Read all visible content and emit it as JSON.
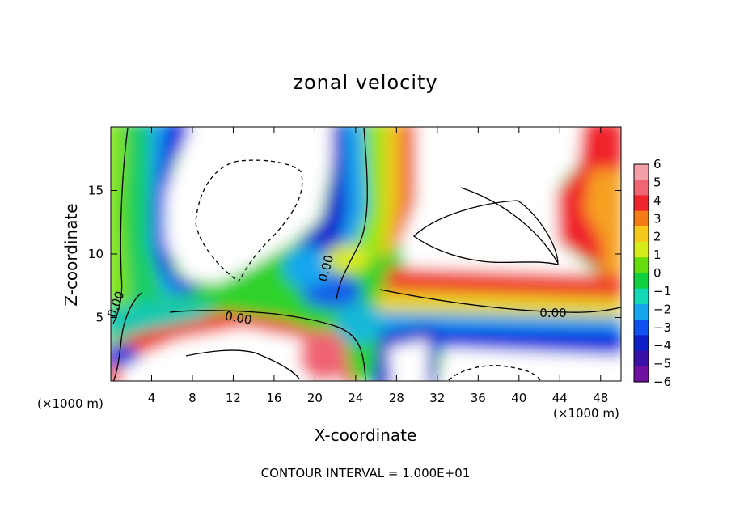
{
  "chart_data": {
    "type": "heatmap",
    "title": "zonal velocity",
    "xlabel": "X-coordinate",
    "ylabel": "Z-coordinate",
    "x_unit": "(×1000 m)",
    "xlim": [
      0,
      50
    ],
    "ylim": [
      0,
      20
    ],
    "x_ticks": [
      4,
      8,
      12,
      16,
      20,
      24,
      28,
      32,
      36,
      40,
      44,
      48
    ],
    "y_ticks": [
      5,
      10,
      15
    ],
    "colorbar": {
      "range": [
        -6,
        6
      ],
      "ticks": [
        6,
        5,
        4,
        3,
        2,
        1,
        0,
        -1,
        -2,
        -3,
        -4,
        -5,
        -6
      ],
      "tick_labels": [
        "6",
        "5",
        "4",
        "3",
        "2",
        "1",
        "0",
        "−1",
        "−2",
        "−3",
        "−4",
        "−5",
        "−6"
      ]
    },
    "contour_labels": [
      "0.00",
      "0.00",
      "0.00",
      "0.00"
    ],
    "footer": "CONTOUR INTERVAL = 1.000E+01"
  }
}
